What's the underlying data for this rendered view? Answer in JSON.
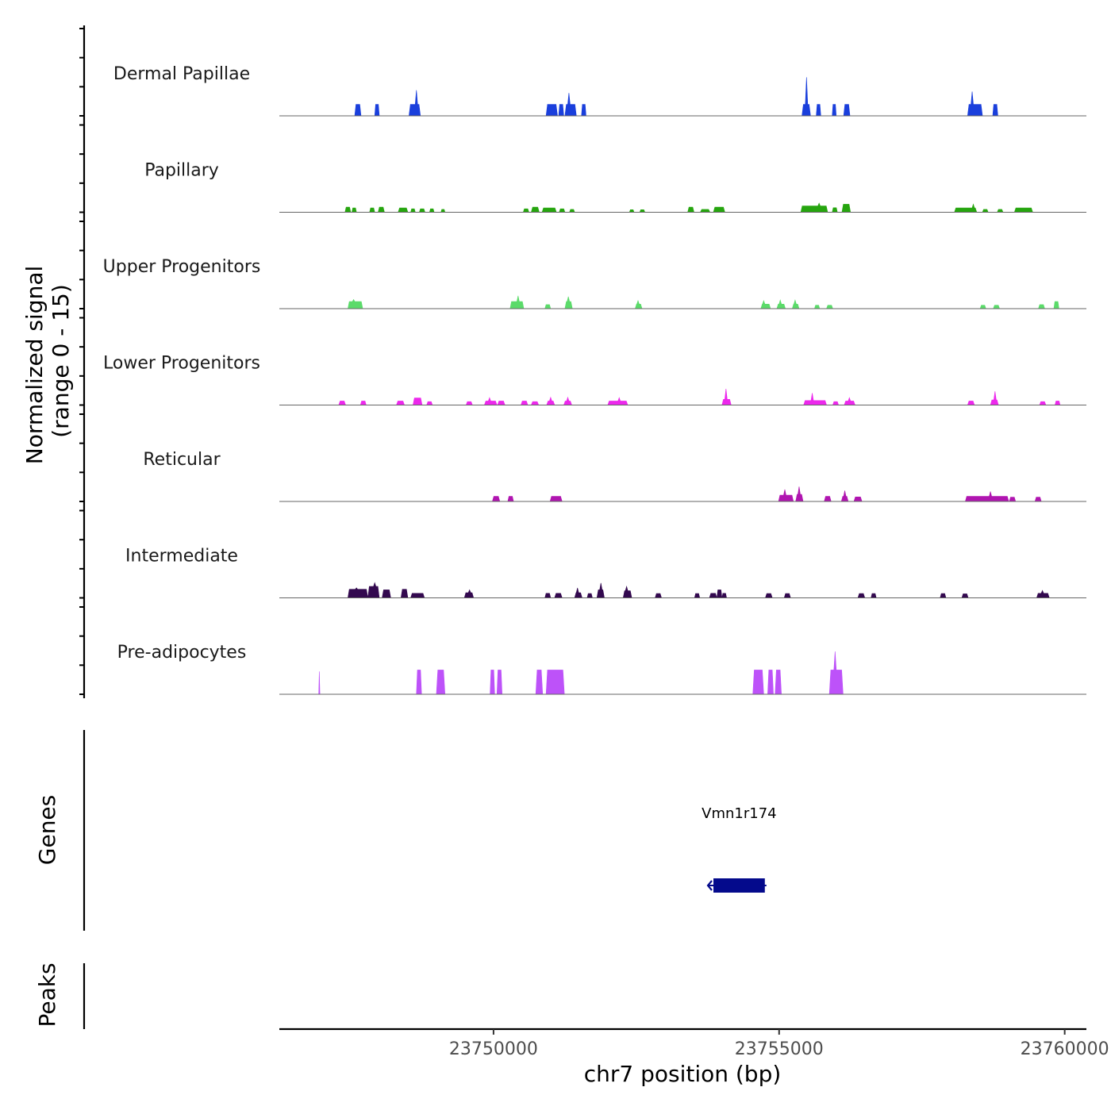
{
  "chart_data": {
    "type": "area",
    "title": "",
    "region": {
      "chromosome": "chr7",
      "start": 23746250,
      "end": 23760380
    },
    "xlabel": "chr7 position (bp)",
    "x_ticks": [
      23750000,
      23755000,
      23760000
    ],
    "x_tick_labels": [
      "23750000",
      "23755000",
      "23760000"
    ],
    "ylabel": [
      "Normalized signal",
      "(range 0 - 15)"
    ],
    "ylim": [
      0,
      15
    ],
    "tracks": [
      {
        "name": "Dermal Papillae",
        "color": "#1a3fdc",
        "peaks": [
          [
            23747570,
            23747680,
            4
          ],
          [
            23747920,
            23748000,
            4
          ],
          [
            23748520,
            23748720,
            4,
            23748650,
            9
          ],
          [
            23750920,
            23751120,
            4
          ],
          [
            23751140,
            23751230,
            4
          ],
          [
            23751250,
            23751450,
            4,
            23751320,
            8
          ],
          [
            23751540,
            23751620,
            4
          ],
          [
            23755400,
            23755550,
            4,
            23755480,
            13.5
          ],
          [
            23755650,
            23755730,
            4
          ],
          [
            23755930,
            23756000,
            4
          ],
          [
            23756130,
            23756240,
            4
          ],
          [
            23758300,
            23758560,
            4,
            23758380,
            8.5
          ],
          [
            23758740,
            23758830,
            4
          ]
        ]
      },
      {
        "name": "Papillary",
        "color": "#26a50f",
        "peaks": [
          [
            23747400,
            23747500,
            1.8
          ],
          [
            23747520,
            23747600,
            1.5
          ],
          [
            23747830,
            23747920,
            1.5
          ],
          [
            23747980,
            23748090,
            1.8
          ],
          [
            23748330,
            23748500,
            1.5
          ],
          [
            23748550,
            23748630,
            1.2
          ],
          [
            23748700,
            23748800,
            1.2
          ],
          [
            23748880,
            23748960,
            1.2
          ],
          [
            23749080,
            23749150,
            1.0
          ],
          [
            23750520,
            23750620,
            1.2
          ],
          [
            23750660,
            23750800,
            1.8
          ],
          [
            23750850,
            23751100,
            1.5
          ],
          [
            23751150,
            23751250,
            1.2
          ],
          [
            23751330,
            23751420,
            1.0
          ],
          [
            23752380,
            23752460,
            0.9
          ],
          [
            23752560,
            23752650,
            0.9
          ],
          [
            23753400,
            23753510,
            1.8
          ],
          [
            23753620,
            23753790,
            1.0
          ],
          [
            23753850,
            23754050,
            1.8
          ],
          [
            23755380,
            23755850,
            2.2,
            23755700,
            3.2
          ],
          [
            23755930,
            23756020,
            1.6
          ],
          [
            23756100,
            23756250,
            2.8
          ],
          [
            23758070,
            23758460,
            1.5,
            23758400,
            2.8
          ],
          [
            23758560,
            23758660,
            1.0
          ],
          [
            23758820,
            23758920,
            1.0
          ],
          [
            23759120,
            23759440,
            1.5
          ]
        ]
      },
      {
        "name": "Upper Progenitors",
        "color": "#5bdb6a",
        "peaks": [
          [
            23747450,
            23747710,
            2.5,
            23747550,
            3.2
          ],
          [
            23750290,
            23750530,
            2.5,
            23750430,
            4.5
          ],
          [
            23750900,
            23751000,
            1.4
          ],
          [
            23751250,
            23751380,
            2.5,
            23751310,
            4.2
          ],
          [
            23752480,
            23752600,
            1.6,
            23752530,
            2.8
          ],
          [
            23754680,
            23754850,
            1.6,
            23754730,
            2.8
          ],
          [
            23754960,
            23755110,
            1.6,
            23755020,
            3.0
          ],
          [
            23755230,
            23755350,
            1.6,
            23755280,
            3.0
          ],
          [
            23755620,
            23755710,
            1.2
          ],
          [
            23755830,
            23755940,
            1.2
          ],
          [
            23758520,
            23758620,
            1.2
          ],
          [
            23758750,
            23758860,
            1.2
          ],
          [
            23759540,
            23759650,
            1.4
          ],
          [
            23759810,
            23759900,
            2.5
          ]
        ]
      },
      {
        "name": "Lower Progenitors",
        "color": "#ec28ec",
        "peaks": [
          [
            23747290,
            23747410,
            1.4
          ],
          [
            23747670,
            23747770,
            1.4
          ],
          [
            23748300,
            23748440,
            1.4
          ],
          [
            23748590,
            23748750,
            2.5
          ],
          [
            23748830,
            23748930,
            1.2
          ],
          [
            23749520,
            23749630,
            1.2
          ],
          [
            23749840,
            23750060,
            1.4,
            23749930,
            2.6
          ],
          [
            23750070,
            23750200,
            1.4
          ],
          [
            23750480,
            23750600,
            1.4
          ],
          [
            23750660,
            23750790,
            1.2
          ],
          [
            23750930,
            23751070,
            1.4,
            23751000,
            2.7
          ],
          [
            23751230,
            23751370,
            1.4,
            23751300,
            2.7
          ],
          [
            23752000,
            23752350,
            1.4,
            23752200,
            2.6
          ],
          [
            23754000,
            23754160,
            2.0,
            23754070,
            5.7
          ],
          [
            23755430,
            23755830,
            1.6,
            23755580,
            4.2
          ],
          [
            23755940,
            23756040,
            1.2
          ],
          [
            23756140,
            23756330,
            1.4,
            23756230,
            2.6
          ],
          [
            23758300,
            23758420,
            1.4
          ],
          [
            23758700,
            23758840,
            1.8,
            23758780,
            4.8
          ],
          [
            23759560,
            23759670,
            1.2
          ],
          [
            23759830,
            23759920,
            1.4
          ]
        ]
      },
      {
        "name": "Reticular",
        "color": "#b015b0",
        "peaks": [
          [
            23749980,
            23750110,
            1.8
          ],
          [
            23750250,
            23750350,
            1.8
          ],
          [
            23750990,
            23751200,
            1.8
          ],
          [
            23754990,
            23755250,
            2.2,
            23755100,
            4.2
          ],
          [
            23755290,
            23755420,
            2.5,
            23755350,
            5.2
          ],
          [
            23755790,
            23755910,
            1.8
          ],
          [
            23756090,
            23756210,
            1.8,
            23756150,
            3.8
          ],
          [
            23756310,
            23756450,
            1.6
          ],
          [
            23758260,
            23759020,
            1.8,
            23758700,
            3.5
          ],
          [
            23759030,
            23759140,
            1.5
          ],
          [
            23759480,
            23759590,
            1.5
          ]
        ]
      },
      {
        "name": "Intermediate",
        "color": "#33094f",
        "peaks": [
          [
            23747450,
            23747800,
            3.0,
            23747600,
            3.5
          ],
          [
            23747800,
            23748000,
            4.0,
            23747920,
            5.3
          ],
          [
            23748050,
            23748200,
            2.8
          ],
          [
            23748380,
            23748500,
            3.0
          ],
          [
            23748550,
            23748790,
            1.6
          ],
          [
            23749490,
            23749650,
            1.8,
            23749580,
            2.8
          ],
          [
            23750900,
            23751000,
            1.6
          ],
          [
            23751070,
            23751200,
            1.6
          ],
          [
            23751420,
            23751550,
            1.8,
            23751470,
            3.5
          ],
          [
            23751640,
            23751730,
            1.5
          ],
          [
            23751810,
            23751940,
            2.8,
            23751880,
            5.2
          ],
          [
            23752270,
            23752420,
            2.5,
            23752330,
            4.0
          ],
          [
            23752830,
            23752940,
            1.5
          ],
          [
            23753520,
            23753610,
            1.5
          ],
          [
            23753780,
            23753910,
            1.6
          ],
          [
            23753910,
            23754000,
            2.8
          ],
          [
            23754000,
            23754080,
            1.6
          ],
          [
            23754760,
            23754880,
            1.5
          ],
          [
            23755090,
            23755200,
            1.5
          ],
          [
            23756380,
            23756500,
            1.5
          ],
          [
            23756610,
            23756700,
            1.5
          ],
          [
            23757820,
            23757920,
            1.5
          ],
          [
            23758200,
            23758310,
            1.4
          ],
          [
            23759510,
            23759730,
            1.6,
            23759610,
            2.6
          ]
        ]
      },
      {
        "name": "Pre-adipocytes",
        "color": "#bd52f9",
        "peaks": [
          [
            23746940,
            23746960,
            0.0,
            23746950,
            8.0
          ],
          [
            23748650,
            23748740,
            8.5
          ],
          [
            23749000,
            23749150,
            8.5
          ],
          [
            23749940,
            23750020,
            8.5
          ],
          [
            23750060,
            23750150,
            8.5
          ],
          [
            23750740,
            23750860,
            8.5
          ],
          [
            23750920,
            23751240,
            8.5
          ],
          [
            23754540,
            23754730,
            8.5
          ],
          [
            23754800,
            23754900,
            8.5
          ],
          [
            23754930,
            23755040,
            8.5
          ],
          [
            23755880,
            23756120,
            8.5,
            23755980,
            15.0
          ]
        ]
      }
    ],
    "genes_track": {
      "label": "Genes",
      "genes": [
        {
          "name": "Vmn1r174",
          "start": 23753850,
          "end": 23754750,
          "strand": "-",
          "color": "#040a8c"
        }
      ]
    },
    "peaks_track": {
      "label": "Peaks"
    }
  }
}
